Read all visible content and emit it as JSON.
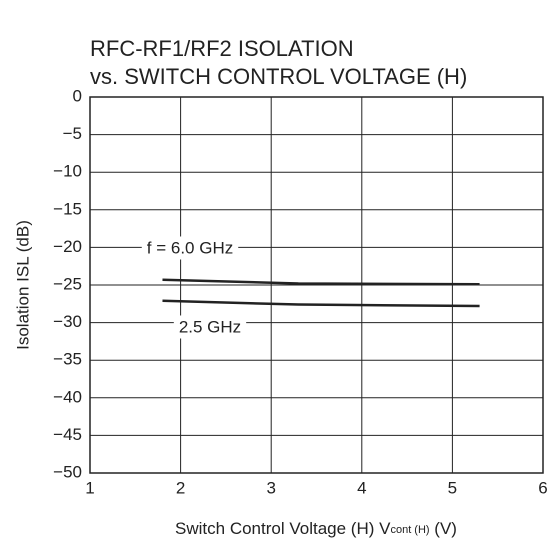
{
  "chart_data": {
    "type": "line",
    "title": [
      "RFC-RF1/RF2  ISOLATION",
      "vs. SWITCH CONTROL VOLTAGE (H)"
    ],
    "x_label": {
      "text": "Switch Control Voltage (H)  V",
      "subscript": "cont (H)",
      "suffix": " (V)"
    },
    "y_label": "Isolation  ISL (dB)",
    "x": [
      1.8,
      3.3,
      5.3
    ],
    "series": [
      {
        "name": "f = 6.0 GHz",
        "color": "#222222",
        "values": [
          -24.3,
          -24.8,
          -24.9
        ]
      },
      {
        "name": "2.5 GHz",
        "color": "#222222",
        "values": [
          -27.1,
          -27.6,
          -27.8
        ]
      }
    ],
    "xlim": [
      1,
      6
    ],
    "xticks": [
      1,
      2,
      3,
      4,
      5,
      6
    ],
    "ylim": [
      -50,
      0
    ],
    "yticks": [
      0,
      {
        "value": -5,
        "label": "−5"
      },
      {
        "value": -10,
        "label": "−10"
      },
      {
        "value": -15,
        "label": "−15"
      },
      {
        "value": -20,
        "label": "−20"
      },
      {
        "value": -25,
        "label": "−25"
      },
      {
        "value": -30,
        "label": "−30"
      },
      {
        "value": -35,
        "label": "−35"
      },
      {
        "value": -40,
        "label": "−40"
      },
      {
        "value": -45,
        "label": "−45"
      },
      {
        "value": -50,
        "label": "−50"
      }
    ],
    "grid": true
  }
}
